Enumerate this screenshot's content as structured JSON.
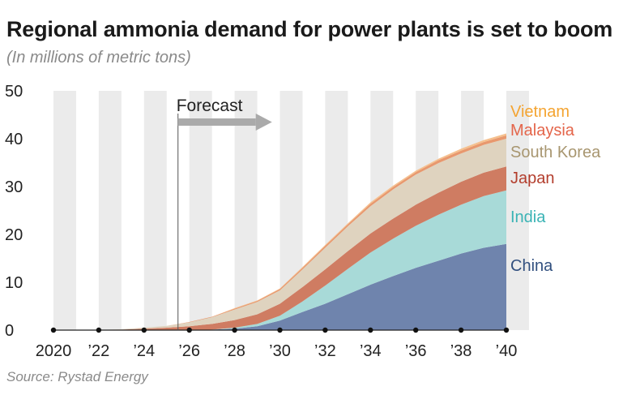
{
  "title": {
    "main": "Regional ammonia demand for power plants is set to boom",
    "subtitle": "(In millions of metric tons)"
  },
  "source": "Source: Rystad Energy",
  "chart_data": {
    "type": "area",
    "stacked": true,
    "title": "Regional ammonia demand for power plants is set to boom",
    "subtitle": "(In millions of metric tons)",
    "xlabel": "",
    "ylabel": "",
    "x": [
      2020,
      2021,
      2022,
      2023,
      2024,
      2025,
      2026,
      2027,
      2028,
      2029,
      2030,
      2031,
      2032,
      2033,
      2034,
      2035,
      2036,
      2037,
      2038,
      2039,
      2040
    ],
    "x_ticks": [
      {
        "value": 2020,
        "label": "2020"
      },
      {
        "value": 2022,
        "label": "’22"
      },
      {
        "value": 2024,
        "label": "’24"
      },
      {
        "value": 2026,
        "label": "’26"
      },
      {
        "value": 2028,
        "label": "’28"
      },
      {
        "value": 2030,
        "label": "’30"
      },
      {
        "value": 2032,
        "label": "’32"
      },
      {
        "value": 2034,
        "label": "’34"
      },
      {
        "value": 2036,
        "label": "’36"
      },
      {
        "value": 2038,
        "label": "’38"
      },
      {
        "value": 2040,
        "label": "’40"
      }
    ],
    "y_ticks": [
      "0",
      "10",
      "20",
      "30",
      "40",
      "50"
    ],
    "ylim": [
      0,
      50
    ],
    "xlim": [
      2020,
      2040
    ],
    "grid": "alternating vertical bands",
    "annotation": {
      "label": "Forecast",
      "x": 2025.5
    },
    "series": [
      {
        "name": "China",
        "color": "#6f84ad",
        "label_color": "#32507f",
        "values": [
          0,
          0,
          0,
          0,
          0,
          0,
          0,
          0.1,
          0.3,
          0.8,
          2.0,
          3.8,
          5.5,
          7.5,
          9.5,
          11.3,
          13.0,
          14.5,
          16.0,
          17.2,
          18.0
        ]
      },
      {
        "name": "India",
        "color": "#a8dad8",
        "label_color": "#3ab3b5",
        "values": [
          0,
          0,
          0,
          0,
          0,
          0,
          0,
          0,
          0.2,
          0.5,
          1.0,
          2.2,
          3.8,
          5.3,
          6.7,
          7.8,
          8.8,
          9.6,
          10.2,
          10.8,
          11.2
        ]
      },
      {
        "name": "Japan",
        "color": "#cf7c62",
        "label_color": "#b33e2d",
        "values": [
          0,
          0,
          0,
          0.1,
          0.3,
          0.5,
          0.8,
          1.2,
          1.6,
          2.0,
          2.5,
          3.0,
          3.4,
          3.7,
          4.0,
          4.2,
          4.4,
          4.6,
          4.8,
          4.9,
          5.0
        ]
      },
      {
        "name": "South Korea",
        "color": "#dfd3bf",
        "label_color": "#a89670",
        "values": [
          0,
          0,
          0,
          0.1,
          0.2,
          0.4,
          0.8,
          1.4,
          2.2,
          2.6,
          2.8,
          3.7,
          4.5,
          5.2,
          5.7,
          6.1,
          6.3,
          6.2,
          5.9,
          5.8,
          5.8
        ]
      },
      {
        "name": "Malaysia",
        "color": "#e8986e",
        "label_color": "#e4654a",
        "values": [
          0,
          0,
          0,
          0,
          0,
          0,
          0.1,
          0.1,
          0.2,
          0.2,
          0.3,
          0.3,
          0.4,
          0.4,
          0.5,
          0.5,
          0.5,
          0.6,
          0.6,
          0.6,
          0.7
        ]
      },
      {
        "name": "Vietnam",
        "color": "#f5c08e",
        "label_color": "#f4a431",
        "values": [
          0,
          0,
          0,
          0,
          0,
          0,
          0,
          0,
          0.1,
          0.1,
          0.1,
          0.2,
          0.2,
          0.2,
          0.3,
          0.3,
          0.3,
          0.3,
          0.4,
          0.4,
          0.4
        ]
      }
    ]
  }
}
